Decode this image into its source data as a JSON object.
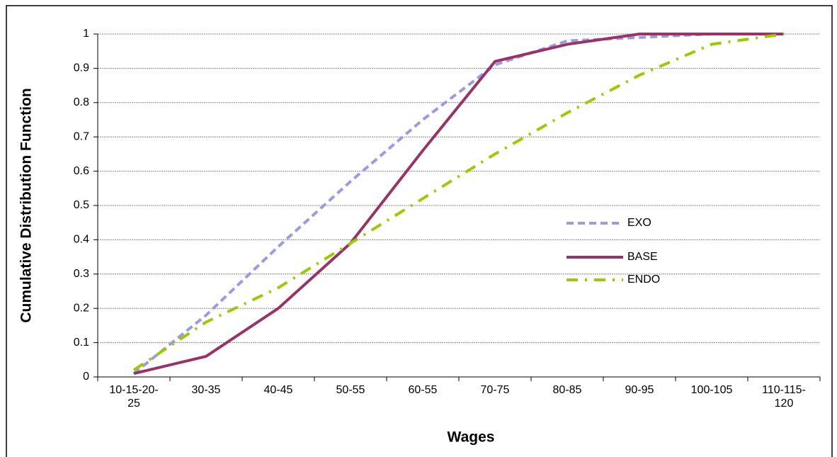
{
  "chart_data": {
    "type": "line",
    "x_label": "Wages",
    "y_label": "Cumulative Distribution Function",
    "categories": [
      "10-15-20-25",
      "30-35",
      "40-45",
      "50-55",
      "60-55",
      "70-75",
      "80-85",
      "90-95",
      "100-105",
      "110-115-120"
    ],
    "series": [
      {
        "name": "EXO",
        "color": "#9a9ae8",
        "dash": "10 6",
        "values": [
          0.01,
          0.18,
          0.38,
          0.57,
          0.75,
          0.91,
          0.98,
          0.99,
          1.0,
          1.0
        ]
      },
      {
        "name": "BASE",
        "color": "#993366",
        "dash": "none",
        "values": [
          0.01,
          0.06,
          0.2,
          0.39,
          0.66,
          0.92,
          0.97,
          1.0,
          1.0,
          1.0
        ]
      },
      {
        "name": "ENDO",
        "color": "#99cc00",
        "dash": "16 10 3 10",
        "values": [
          0.02,
          0.16,
          0.26,
          0.39,
          0.52,
          0.65,
          0.77,
          0.88,
          0.97,
          1.0
        ]
      }
    ],
    "ylim": [
      0,
      1
    ],
    "yticks": [
      0,
      0.1,
      0.2,
      0.3,
      0.4,
      0.5,
      0.6,
      0.7,
      0.8,
      0.9,
      1
    ],
    "grid": true,
    "legend_position": "right"
  }
}
